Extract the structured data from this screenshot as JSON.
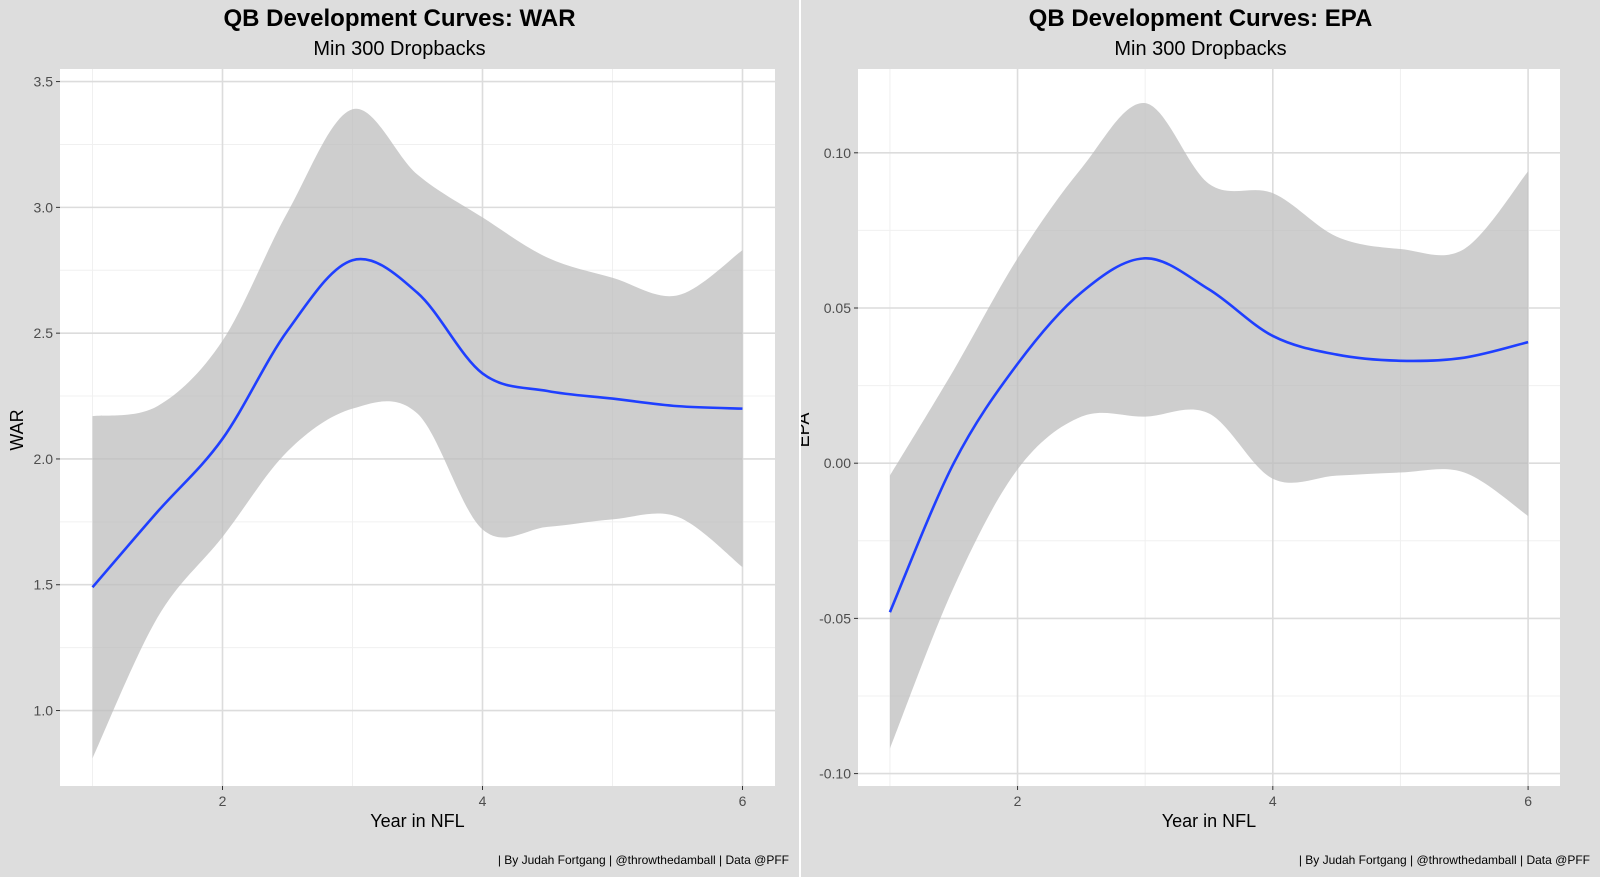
{
  "caption": "| By Judah Fortgang | @throwthedamball | Data @PFF",
  "colors": {
    "panel_bg": "#dddddd",
    "plot_bg": "#ffffff",
    "grid": "#dcdcdc",
    "line": "#1f3fff",
    "ribbon": "#bdbdbd"
  },
  "chart_data": [
    {
      "type": "line",
      "title": "QB Development Curves: WAR",
      "subtitle": "Min 300 Dropbacks",
      "xlabel": "Year in NFL",
      "ylabel": "WAR",
      "xlim": [
        0.75,
        6.25
      ],
      "ylim": [
        0.7,
        3.55
      ],
      "x_ticks": [
        2,
        4,
        6
      ],
      "x_tick_labels": [
        "2",
        "4",
        "6"
      ],
      "y_ticks": [
        1.0,
        1.5,
        2.0,
        2.5,
        3.0,
        3.5
      ],
      "y_tick_labels": [
        "1.0",
        "1.5",
        "2.0",
        "2.5",
        "3.0",
        "3.5"
      ],
      "grid": true,
      "x": [
        1.0,
        1.5,
        2.0,
        2.5,
        3.0,
        3.5,
        4.0,
        4.5,
        5.0,
        5.5,
        6.0
      ],
      "fit": [
        1.49,
        1.79,
        2.08,
        2.51,
        2.79,
        2.66,
        2.34,
        2.27,
        2.24,
        2.21,
        2.2
      ],
      "lower": [
        0.81,
        1.37,
        1.69,
        2.03,
        2.2,
        2.18,
        1.72,
        1.73,
        1.76,
        1.77,
        1.57
      ],
      "upper": [
        2.17,
        2.21,
        2.47,
        2.98,
        3.39,
        3.13,
        2.96,
        2.8,
        2.72,
        2.65,
        2.83
      ]
    },
    {
      "type": "line",
      "title": "QB Development Curves: EPA",
      "subtitle": "Min 300 Dropbacks",
      "xlabel": "Year in NFL",
      "ylabel": "EPA",
      "xlim": [
        0.75,
        6.25
      ],
      "ylim": [
        -0.104,
        0.127
      ],
      "x_ticks": [
        2,
        4,
        6
      ],
      "x_tick_labels": [
        "2",
        "4",
        "6"
      ],
      "y_ticks": [
        -0.1,
        -0.05,
        0.0,
        0.05,
        0.1
      ],
      "y_tick_labels": [
        "-0.10",
        "-0.05",
        "0.00",
        "0.05",
        "0.10"
      ],
      "grid": true,
      "x": [
        1.0,
        1.5,
        2.0,
        2.5,
        3.0,
        3.5,
        4.0,
        4.5,
        5.0,
        5.5,
        6.0
      ],
      "fit": [
        -0.048,
        0.0,
        0.032,
        0.055,
        0.066,
        0.056,
        0.041,
        0.035,
        0.033,
        0.034,
        0.039
      ],
      "lower": [
        -0.092,
        -0.04,
        -0.002,
        0.015,
        0.015,
        0.016,
        -0.005,
        -0.004,
        -0.003,
        -0.003,
        -0.017
      ],
      "upper": [
        -0.004,
        0.03,
        0.066,
        0.095,
        0.116,
        0.09,
        0.087,
        0.073,
        0.069,
        0.069,
        0.094
      ]
    }
  ]
}
